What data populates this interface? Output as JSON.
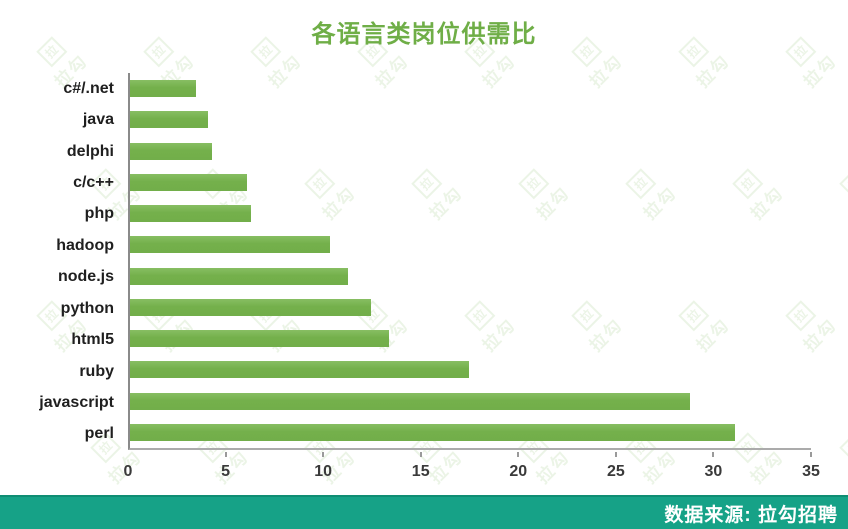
{
  "title": "各语言类岗位供需比",
  "footer": {
    "source_label": "数据来源: 拉勾招聘"
  },
  "watermark": {
    "text": "拉勾",
    "glyph": "拉"
  },
  "colors": {
    "bar": "#74b04b",
    "title": "#6fae47",
    "footer_bg": "#16a287",
    "footer_text": "#ffffff",
    "axis": "#9a9a9a",
    "watermark": "#6fae47"
  },
  "chart_data": {
    "type": "bar",
    "orientation": "horizontal",
    "title": "各语言类岗位供需比",
    "categories": [
      "c#/.net",
      "java",
      "delphi",
      "c/c++",
      "php",
      "hadoop",
      "node.js",
      "python",
      "html5",
      "ruby",
      "javascript",
      "perl"
    ],
    "values": [
      3.4,
      4.0,
      4.2,
      6.0,
      6.2,
      10.3,
      11.2,
      12.4,
      13.3,
      17.4,
      28.8,
      31.1
    ],
    "xlabel": "",
    "ylabel": "",
    "xlim": [
      0,
      35
    ],
    "xticks": [
      0,
      5,
      10,
      15,
      20,
      25,
      30,
      35
    ],
    "grid": false,
    "legend": null,
    "bar_color": "#74b04b",
    "source_note": "数据来源: 拉勾招聘"
  }
}
